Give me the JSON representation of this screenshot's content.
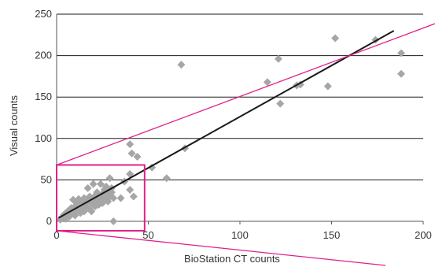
{
  "chart_data": {
    "type": "scatter",
    "xlabel": "BioStation CT counts",
    "ylabel": "Visual counts",
    "xlim": [
      0,
      200
    ],
    "ylim": [
      0,
      250
    ],
    "x_ticks": [
      "0",
      "50",
      "100",
      "150",
      "200"
    ],
    "y_ticks": [
      "0",
      "50",
      "100",
      "150",
      "200",
      "250"
    ],
    "grid": "horizontal",
    "legend": "none",
    "series": [
      {
        "marker": "diamond",
        "color": "#a6a6a6",
        "points": [
          [
            2,
            2
          ],
          [
            3,
            5
          ],
          [
            4,
            8
          ],
          [
            5,
            10
          ],
          [
            5,
            3
          ],
          [
            6,
            12
          ],
          [
            7,
            6
          ],
          [
            7,
            14
          ],
          [
            8,
            9
          ],
          [
            8,
            16
          ],
          [
            9,
            11
          ],
          [
            9,
            26
          ],
          [
            10,
            18
          ],
          [
            10,
            7
          ],
          [
            11,
            13
          ],
          [
            11,
            22
          ],
          [
            12,
            27
          ],
          [
            12,
            15
          ],
          [
            13,
            10
          ],
          [
            13,
            20
          ],
          [
            14,
            25
          ],
          [
            14,
            17
          ],
          [
            15,
            12
          ],
          [
            15,
            28
          ],
          [
            16,
            21
          ],
          [
            16,
            18
          ],
          [
            17,
            40
          ],
          [
            17,
            24
          ],
          [
            18,
            15
          ],
          [
            18,
            30
          ],
          [
            19,
            22
          ],
          [
            19,
            12
          ],
          [
            20,
            26
          ],
          [
            20,
            45
          ],
          [
            21,
            18
          ],
          [
            21,
            31
          ],
          [
            22,
            24
          ],
          [
            22,
            35
          ],
          [
            23,
            20
          ],
          [
            23,
            28
          ],
          [
            24,
            45
          ],
          [
            24,
            26
          ],
          [
            25,
            33
          ],
          [
            25,
            22
          ],
          [
            26,
            38
          ],
          [
            26,
            30
          ],
          [
            27,
            27
          ],
          [
            27,
            42
          ],
          [
            28,
            24
          ],
          [
            28,
            35
          ],
          [
            29,
            30
          ],
          [
            29,
            52
          ],
          [
            30,
            35
          ],
          [
            30,
            40
          ],
          [
            31,
            28
          ],
          [
            31,
            0
          ],
          [
            35,
            28
          ],
          [
            37,
            48
          ],
          [
            40,
            57
          ],
          [
            40,
            38
          ],
          [
            40,
            93
          ],
          [
            41,
            82
          ],
          [
            42,
            30
          ],
          [
            44,
            78
          ],
          [
            52,
            65
          ],
          [
            60,
            52
          ],
          [
            68,
            189
          ],
          [
            70,
            88
          ],
          [
            115,
            168
          ],
          [
            121,
            196
          ],
          [
            122,
            142
          ],
          [
            131,
            164
          ],
          [
            133,
            165
          ],
          [
            148,
            163
          ],
          [
            152,
            221
          ],
          [
            174,
            219
          ],
          [
            188,
            203
          ],
          [
            188,
            178
          ]
        ]
      }
    ],
    "trendline": {
      "from": [
        1,
        4
      ],
      "to": [
        184,
        230
      ],
      "color": "#1a1a1a"
    },
    "zoom_box": {
      "x": [
        0,
        48
      ],
      "y": [
        0,
        68
      ],
      "color": "#e0218a"
    }
  }
}
